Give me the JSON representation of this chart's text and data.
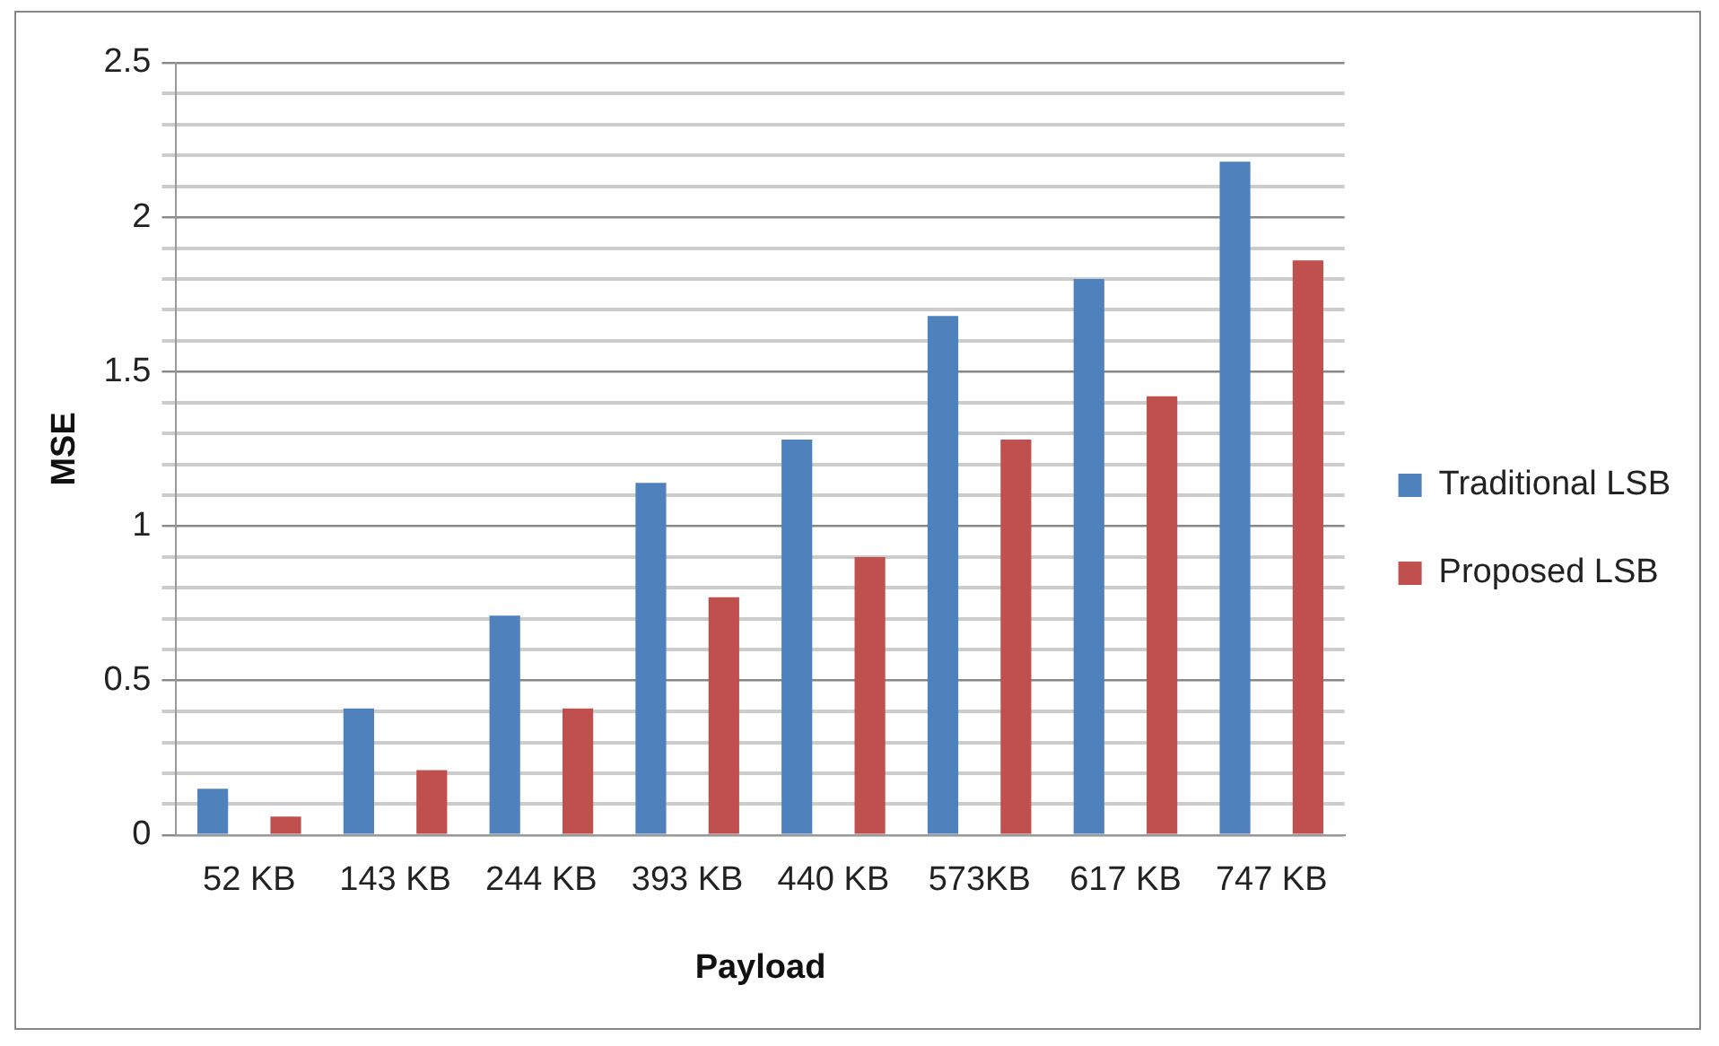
{
  "chart_data": {
    "type": "bar",
    "xlabel": "Payload",
    "ylabel": "MSE",
    "categories": [
      "52 KB",
      "143 KB",
      "244 KB",
      "393 KB",
      "440 KB",
      "573KB",
      "617 KB",
      "747 KB"
    ],
    "series": [
      {
        "name": "Traditional LSB",
        "color": "#4f81bd",
        "values": [
          0.15,
          0.41,
          0.71,
          1.14,
          1.28,
          1.68,
          1.8,
          2.18
        ]
      },
      {
        "name": "Proposed LSB",
        "color": "#c0504d",
        "values": [
          0.06,
          0.21,
          0.41,
          0.77,
          0.9,
          1.28,
          1.42,
          1.86
        ]
      }
    ],
    "ylim": [
      0,
      2.5
    ],
    "yticks": [
      0,
      {
        "value": 0.1,
        "label": null
      },
      {
        "value": 0.2,
        "label": null
      },
      {
        "value": 0.3,
        "label": null
      },
      {
        "value": 0.4,
        "label": null
      },
      0.5,
      {
        "value": 0.6,
        "label": null
      },
      {
        "value": 0.7,
        "label": null
      },
      {
        "value": 0.8,
        "label": null
      },
      {
        "value": 0.9,
        "label": null
      },
      1,
      {
        "value": 1.1,
        "label": null
      },
      {
        "value": 1.2,
        "label": null
      },
      {
        "value": 1.3,
        "label": null
      },
      {
        "value": 1.4,
        "label": null
      },
      1.5,
      {
        "value": 1.6,
        "label": null
      },
      {
        "value": 1.7,
        "label": null
      },
      {
        "value": 1.8,
        "label": null
      },
      {
        "value": 1.9,
        "label": null
      },
      2,
      {
        "value": 2.1,
        "label": null
      },
      {
        "value": 2.2,
        "label": null
      },
      {
        "value": 2.3,
        "label": null
      },
      {
        "value": 2.4,
        "label": null
      },
      2.5
    ],
    "grid": "y",
    "legend": "right"
  }
}
